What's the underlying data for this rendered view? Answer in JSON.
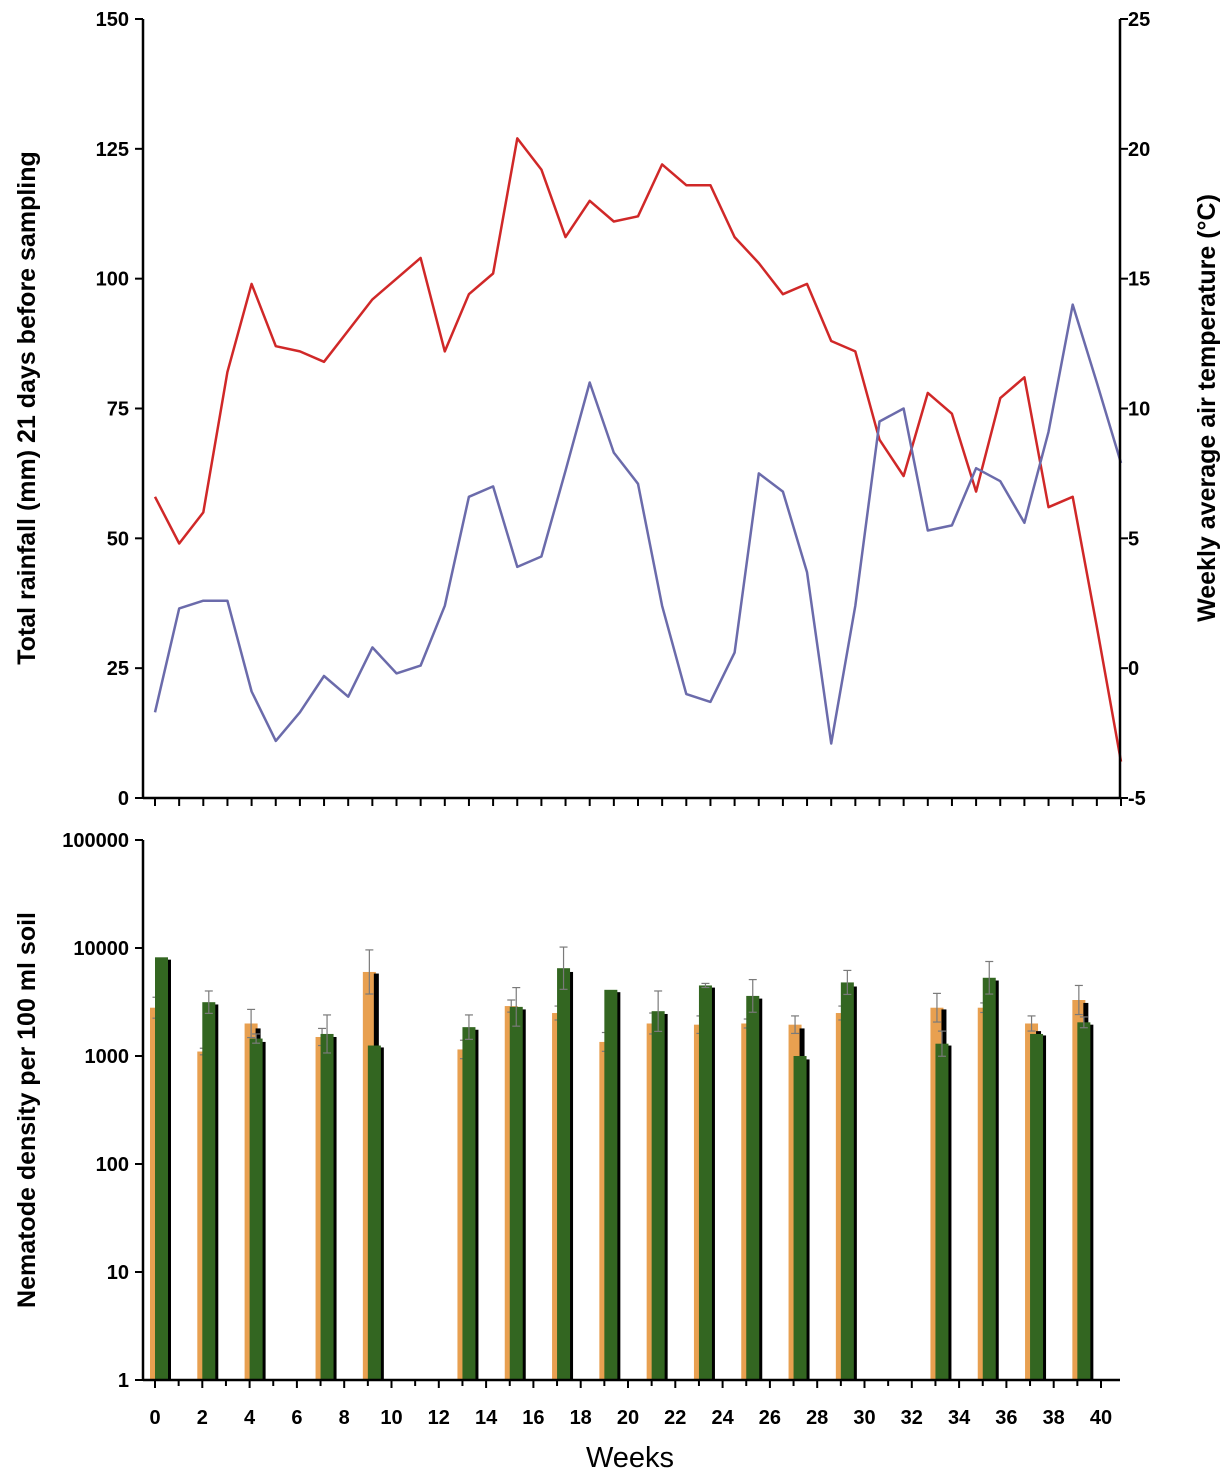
{
  "chart_data": [
    {
      "type": "line",
      "title": "",
      "xlabel": "",
      "ylabel_left": "Total rainfall (mm) 21 days before sampling",
      "ylabel_right": "Weekly average air temperature (°C)",
      "xlim": [
        0,
        40
      ],
      "ylim_left": [
        0,
        150
      ],
      "ylim_right": [
        -5,
        25
      ],
      "yticks_left": [
        "0",
        "25",
        "50",
        "75",
        "100",
        "125",
        "150"
      ],
      "yticks_right": [
        "-5",
        "0",
        "5",
        "10",
        "15",
        "20",
        "25"
      ],
      "grid": false,
      "series": [
        {
          "axis": "left",
          "color": "#d02828",
          "x": [
            0,
            1,
            2,
            3,
            4,
            5,
            6,
            7,
            8,
            9,
            10,
            11,
            12,
            13,
            14,
            15,
            16,
            17,
            18,
            19,
            20,
            21,
            22,
            23,
            24,
            25,
            26,
            27,
            28,
            29,
            30,
            31,
            32,
            33,
            34,
            35,
            36,
            37,
            38,
            39,
            40
          ],
          "values": [
            58,
            49,
            55,
            82,
            99,
            87,
            86,
            84,
            90,
            96,
            100,
            104,
            86,
            97,
            101,
            127,
            121,
            108,
            115,
            111,
            112,
            122,
            118,
            118,
            108,
            103,
            97,
            99,
            88,
            86,
            69,
            62,
            78,
            74,
            59,
            77,
            81,
            56,
            58,
            33,
            7
          ]
        },
        {
          "axis": "right",
          "color": "#6b6bab",
          "x": [
            0,
            1,
            2,
            3,
            4,
            5,
            6,
            7,
            8,
            9,
            10,
            11,
            12,
            13,
            14,
            15,
            16,
            17,
            18,
            19,
            20,
            21,
            22,
            23,
            24,
            25,
            26,
            27,
            28,
            29,
            30,
            31,
            32,
            33,
            34,
            35,
            36,
            37,
            38,
            39,
            40
          ],
          "values": [
            -1.7,
            2.3,
            2.6,
            2.6,
            -0.9,
            -2.8,
            -1.7,
            -0.3,
            -1.1,
            0.8,
            -0.2,
            0.1,
            2.4,
            6.6,
            7.0,
            3.9,
            4.3,
            7.6,
            11.0,
            8.3,
            7.1,
            2.4,
            -1.0,
            -1.3,
            0.6,
            7.5,
            6.8,
            3.7,
            -2.9,
            2.4,
            9.5,
            10.0,
            5.3,
            5.5,
            7.7,
            7.2,
            5.6,
            9.1,
            14.0,
            11.0,
            7.9
          ]
        }
      ]
    },
    {
      "type": "bar",
      "title": "",
      "xlabel": "Weeks",
      "ylabel": "Nematode density per 100 ml soil",
      "yscale": "log",
      "ylim": [
        1,
        100000
      ],
      "yticks": [
        "1",
        "10",
        "100",
        "1000",
        "10000",
        "100000"
      ],
      "xticks": [
        "0",
        "2",
        "4",
        "6",
        "8",
        "10",
        "12",
        "14",
        "16",
        "18",
        "20",
        "22",
        "24",
        "26",
        "28",
        "30",
        "32",
        "34",
        "36",
        "38",
        "40"
      ],
      "xlim": [
        0,
        40
      ],
      "grid": false,
      "series": [
        {
          "color": "#e8a050",
          "points": [
            [
              0,
              2800,
              3500
            ],
            [
              2,
              1100,
              1180
            ],
            [
              4,
              2000,
              2700
            ],
            [
              7,
              1500,
              1800
            ],
            [
              9,
              6000,
              9600
            ],
            [
              13,
              1150,
              1400
            ],
            [
              15,
              2900,
              3300
            ],
            [
              17,
              2500,
              2900
            ],
            [
              19,
              1350,
              1650
            ],
            [
              21,
              2000,
              2500
            ],
            [
              23,
              1950,
              2350
            ],
            [
              25,
              2000,
              2200
            ],
            [
              27,
              1950,
              2350
            ],
            [
              29,
              2500,
              2900
            ],
            [
              33,
              2800,
              3800
            ],
            [
              35,
              2800,
              3100
            ],
            [
              37,
              2000,
              2350
            ],
            [
              39,
              3300,
              4500
            ]
          ]
        },
        {
          "color": "#000000",
          "points": [
            [
              0,
              7800,
              null
            ],
            [
              2,
              3000,
              null
            ],
            [
              4,
              1800,
              null
            ],
            [
              7,
              1450,
              null
            ],
            [
              9,
              5800,
              null
            ],
            [
              13,
              1750,
              null
            ],
            [
              15,
              2700,
              null
            ],
            [
              17,
              6000,
              null
            ],
            [
              19,
              3900,
              null
            ],
            [
              21,
              2500,
              null
            ],
            [
              23,
              4200,
              null
            ],
            [
              25,
              3300,
              null
            ],
            [
              27,
              1800,
              null
            ],
            [
              29,
              4400,
              null
            ],
            [
              33,
              2700,
              null
            ],
            [
              35,
              4900,
              null
            ],
            [
              37,
              1700,
              null
            ],
            [
              39,
              3100,
              null
            ]
          ]
        },
        {
          "color": "#336621",
          "points": [
            [
              0,
              8200,
              null
            ],
            [
              2,
              3150,
              4000
            ],
            [
              4,
              1450,
              1600
            ],
            [
              7,
              1600,
              2400
            ],
            [
              9,
              1250,
              null
            ],
            [
              13,
              1850,
              2400
            ],
            [
              15,
              2850,
              4300
            ],
            [
              17,
              6500,
              10200
            ],
            [
              19,
              4100,
              null
            ],
            [
              21,
              2600,
              4000
            ],
            [
              23,
              4500,
              4700
            ],
            [
              25,
              3600,
              5100
            ],
            [
              27,
              1000,
              null
            ],
            [
              29,
              4800,
              6200
            ],
            [
              33,
              1300,
              1700
            ],
            [
              35,
              5300,
              7500
            ],
            [
              37,
              1600,
              null
            ],
            [
              39,
              2050,
              2300
            ]
          ]
        },
        {
          "color": "#000000",
          "points": [
            [
              0,
              7800,
              null
            ],
            [
              2,
              3000,
              null
            ],
            [
              4,
              1350,
              null
            ],
            [
              7,
              1500,
              null
            ],
            [
              9,
              1200,
              null
            ],
            [
              13,
              1750,
              null
            ],
            [
              15,
              2700,
              null
            ],
            [
              17,
              6000,
              null
            ],
            [
              19,
              3900,
              null
            ],
            [
              21,
              2450,
              null
            ],
            [
              23,
              4300,
              null
            ],
            [
              25,
              3400,
              null
            ],
            [
              27,
              930,
              null
            ],
            [
              29,
              4400,
              null
            ],
            [
              33,
              1250,
              null
            ],
            [
              35,
              5000,
              null
            ],
            [
              37,
              1550,
              null
            ],
            [
              39,
              1950,
              null
            ]
          ]
        }
      ]
    }
  ]
}
